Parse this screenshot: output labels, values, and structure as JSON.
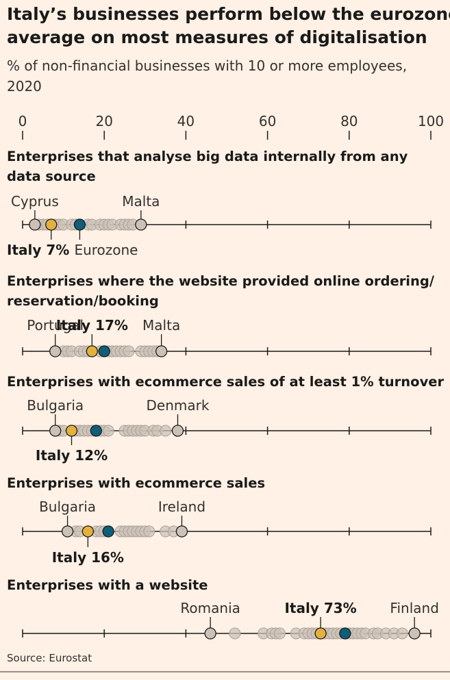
{
  "title_line1": "Italy’s businesses perform below the eurozone",
  "title_line2": "average on most measures of digitalisation",
  "subtitle_line1": "% of non-financial businesses with 10 or more employees,",
  "subtitle_line2": "2020",
  "source": "Source: Eurostat",
  "colors": {
    "background": "#fff1e5",
    "italy": "#e3b13e",
    "eurozone": "#0f5e7a",
    "other": "#ccc1b7",
    "axis": "#1a1a1a"
  },
  "chart_data": {
    "type": "strip",
    "xlim": [
      0,
      100
    ],
    "ticks": [
      0,
      20,
      40,
      60,
      80,
      100
    ],
    "panels": [
      {
        "title_lines": [
          "Enterprises that analyse big data internally from any",
          "data source"
        ],
        "others": [
          4,
          5,
          6,
          8,
          9,
          10,
          12,
          13,
          14,
          16,
          17,
          19,
          20,
          21,
          22,
          24,
          25,
          26,
          27
        ],
        "italy": 7,
        "eurozone": 14,
        "low": 3,
        "high": 29,
        "labels": {
          "low": "Cyprus",
          "high": "Malta",
          "italy_name": "Italy",
          "italy_value": "7%",
          "eurozone": "Eurozone"
        }
      },
      {
        "title_lines": [
          "Enterprises where the website provided online ordering/",
          "reservation/booking"
        ],
        "others": [
          10,
          11,
          12,
          14,
          15,
          16,
          19,
          21,
          22,
          23,
          24,
          25,
          26,
          29,
          30,
          31,
          32,
          33
        ],
        "italy": 17,
        "eurozone": 20,
        "low": 8,
        "high": 34,
        "labels": {
          "low": "Portugal",
          "high": "Malta",
          "italy_name": "Italy",
          "italy_value": "17%"
        }
      },
      {
        "title_lines": [
          "Enterprises with ecommerce sales of at least 1% turnover"
        ],
        "others": [
          9,
          10,
          13,
          14,
          15,
          16,
          17,
          19,
          20,
          21,
          25,
          26,
          27,
          28,
          29,
          30,
          32,
          33,
          35
        ],
        "italy": 12,
        "eurozone": 18,
        "low": 8,
        "high": 38,
        "labels": {
          "low": "Bulgaria",
          "high": "Denmark",
          "italy_name": "Italy",
          "italy_value": "12%"
        }
      },
      {
        "title_lines": [
          "Enterprises with ecommerce sales"
        ],
        "others": [
          13,
          14,
          18,
          19,
          20,
          21,
          24,
          25,
          26,
          27,
          28,
          29,
          30,
          31,
          35,
          37,
          39
        ],
        "italy": 16,
        "eurozone": 21,
        "low": 11,
        "high": 39,
        "labels": {
          "low": "Bulgaria",
          "high": "Ireland",
          "italy_name": "Italy",
          "italy_value": "16%"
        }
      },
      {
        "title_lines": [
          "Enterprises with a website"
        ],
        "others": [
          52,
          59,
          61,
          62,
          63,
          67,
          69,
          70,
          71,
          72,
          74,
          75,
          76,
          77,
          78,
          80,
          81,
          82,
          83,
          84,
          86,
          87,
          89,
          91,
          93
        ],
        "italy": 73,
        "eurozone": 79,
        "low": 46,
        "high": 96,
        "labels": {
          "low": "Romania",
          "high": "Finland",
          "italy_name": "Italy",
          "italy_value": "73%"
        }
      }
    ]
  }
}
